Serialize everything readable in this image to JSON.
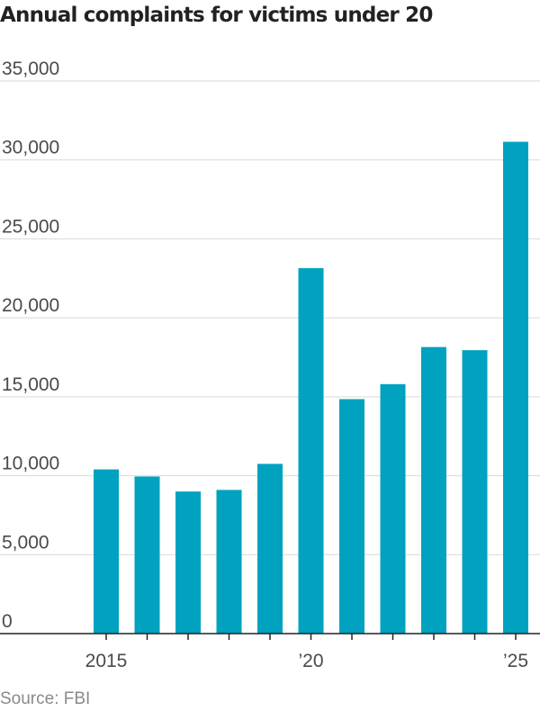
{
  "chart_data": {
    "type": "bar",
    "title": "Annual complaints for victims under 20",
    "source": "Source: FBI",
    "categories": [
      "2015",
      "2016",
      "2017",
      "2018",
      "2019",
      "2020",
      "2021",
      "2022",
      "2023",
      "2024",
      "2025"
    ],
    "values": [
      10400,
      9950,
      9000,
      9100,
      10750,
      23150,
      14850,
      15800,
      18150,
      17950,
      31150
    ],
    "xtick_labels": [
      {
        "category": "2015",
        "label": "2015"
      },
      {
        "category": "2020",
        "label": "’20"
      },
      {
        "category": "2025",
        "label": "’25"
      }
    ],
    "ytick_labels": [
      "0",
      "5,000",
      "10,000",
      "15,000",
      "20,000",
      "25,000",
      "30,000",
      "35,000"
    ],
    "yticks": [
      0,
      5000,
      10000,
      15000,
      20000,
      25000,
      30000,
      35000
    ],
    "ylim": [
      0,
      35000
    ],
    "xlabel": "",
    "ylabel": "",
    "grid": true,
    "legend": "none",
    "bar_color": "#00a2bf",
    "grid_color": "#d9d9d9",
    "axis_color": "#222222"
  }
}
